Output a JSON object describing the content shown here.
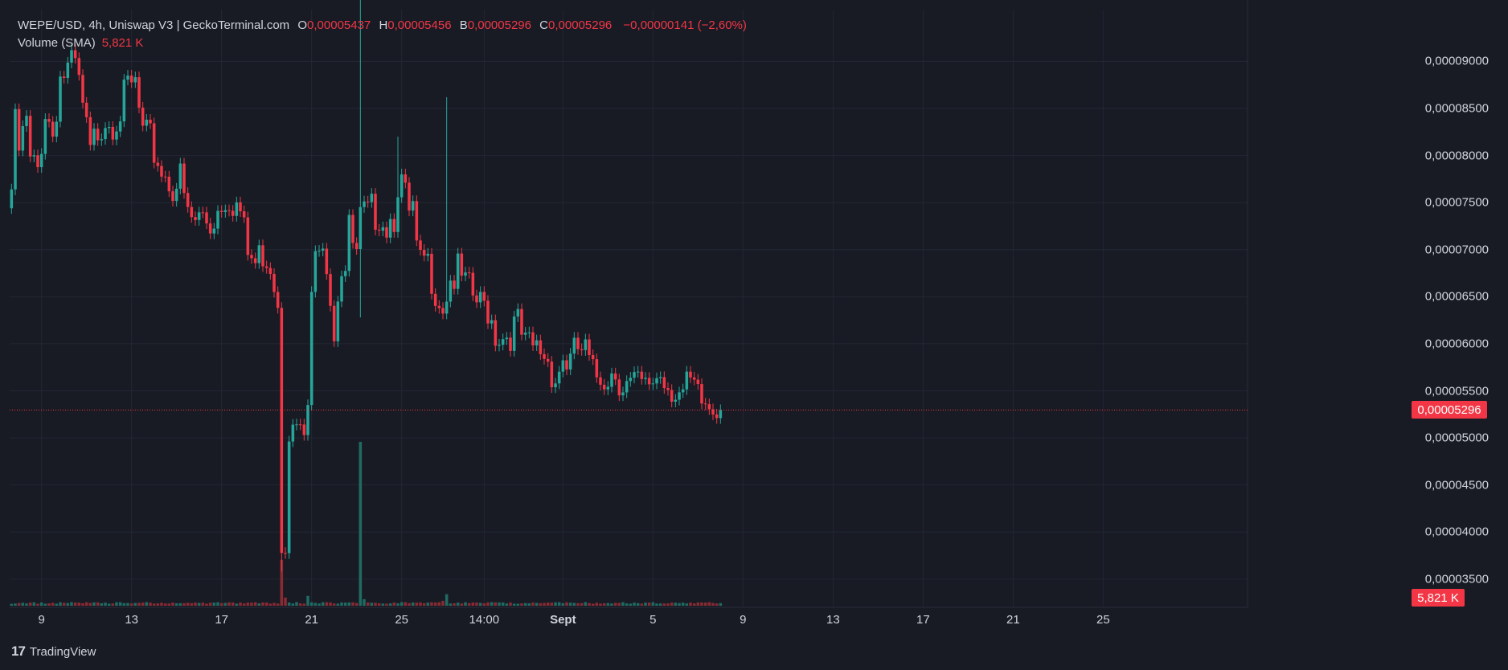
{
  "legend": {
    "symbol": "WEPE/USD, 4h, Uniswap V3 | GeckoTerminal.com",
    "o_label": "O",
    "o_value": "0,00005437",
    "h_label": "H",
    "h_value": "0,00005456",
    "l_label": "B",
    "l_value": "0,00005296",
    "c_label": "C",
    "c_value": "0,00005296",
    "change": "−0,00000141 (−2,60%)",
    "volume_label": "Volume (SMA)",
    "volume_value": "5,821 K"
  },
  "brand": {
    "logo_icon": "tradingview-logo-icon",
    "name": "TradingView"
  },
  "colors": {
    "up": "#26a69a",
    "down": "#f23645",
    "background": "#181b24",
    "grid": "#232733",
    "text": "#d1d4dc"
  },
  "chart_data": {
    "type": "candlestick",
    "y_ticks": [
      "0,00009000",
      "0,00008500",
      "0,00008000",
      "0,00007500",
      "0,00007000",
      "0,00006500",
      "0,00006000",
      "0,00005500",
      "0,00005000",
      "0,00004500",
      "0,00004000",
      "0,00003500"
    ],
    "y_tick_values": [
      9e-05,
      8.5e-05,
      8e-05,
      7.5e-05,
      7e-05,
      6.5e-05,
      6e-05,
      5.5e-05,
      5e-05,
      4.5e-05,
      4e-05,
      3.5e-05
    ],
    "ylim": [
      3.2e-05,
      9.55e-05
    ],
    "x_ticks": [
      {
        "label": "9",
        "bar": 8
      },
      {
        "label": "13",
        "bar": 32
      },
      {
        "label": "17",
        "bar": 56
      },
      {
        "label": "21",
        "bar": 80
      },
      {
        "label": "25",
        "bar": 104
      },
      {
        "label": "14:00",
        "bar": 126
      },
      {
        "label": "Sept",
        "bar": 147,
        "bold": true
      },
      {
        "label": "5",
        "bar": 171
      },
      {
        "label": "9",
        "bar": 195
      },
      {
        "label": "13",
        "bar": 219
      },
      {
        "label": "17",
        "bar": 243
      },
      {
        "label": "21",
        "bar": 267
      },
      {
        "label": "25",
        "bar": 291
      }
    ],
    "total_bar_slots": 330,
    "last_price": 5.296e-05,
    "last_price_label": "0,00005296",
    "volume_last_label": "5,821 K",
    "anchors": [
      [
        0,
        7.75e-05
      ],
      [
        1,
        8.4e-05
      ],
      [
        2,
        8.15e-05
      ],
      [
        4,
        8.45e-05
      ],
      [
        5,
        8e-05
      ],
      [
        7,
        7.95e-05
      ],
      [
        9,
        8.6e-05
      ],
      [
        11,
        8.35e-05
      ],
      [
        13,
        8.95e-05
      ],
      [
        15,
        9e-05
      ],
      [
        17,
        9.05e-05
      ],
      [
        19,
        8.6e-05
      ],
      [
        21,
        8.1e-05
      ],
      [
        23,
        8.4e-05
      ],
      [
        25,
        8.55e-05
      ],
      [
        27,
        8.5e-05
      ],
      [
        29,
        8.6e-05
      ],
      [
        31,
        8.8e-05
      ],
      [
        33,
        8.85e-05
      ],
      [
        35,
        8.3e-05
      ],
      [
        37,
        8.25e-05
      ],
      [
        39,
        8.05e-05
      ],
      [
        41,
        7.9e-05
      ],
      [
        43,
        7.8e-05
      ],
      [
        45,
        7.85e-05
      ],
      [
        47,
        7.45e-05
      ],
      [
        49,
        7.4e-05
      ],
      [
        51,
        7.48e-05
      ],
      [
        53,
        7.38e-05
      ],
      [
        55,
        7.55e-05
      ],
      [
        57,
        7.7e-05
      ],
      [
        59,
        7.65e-05
      ],
      [
        61,
        7.5e-05
      ],
      [
        63,
        7.05e-05
      ],
      [
        65,
        6.95e-05
      ],
      [
        67,
        7.1e-05
      ],
      [
        69,
        7e-05
      ],
      [
        71,
        6.6e-05
      ],
      [
        72,
        4.07e-05
      ],
      [
        73,
        4.1e-05
      ],
      [
        74,
        5.25e-05
      ],
      [
        75,
        5.12e-05
      ],
      [
        76,
        5.22e-05
      ],
      [
        77,
        5.1e-05
      ],
      [
        78,
        5.1e-05
      ],
      [
        79,
        5.45e-05
      ],
      [
        80,
        6.5e-05
      ],
      [
        81,
        7e-05
      ],
      [
        82,
        7.3e-05
      ],
      [
        83,
        7.28e-05
      ],
      [
        84,
        7.05e-05
      ],
      [
        85,
        6.65e-05
      ],
      [
        86,
        6.25e-05
      ],
      [
        87,
        6.7e-05
      ],
      [
        88,
        6.95e-05
      ],
      [
        89,
        6.9e-05
      ],
      [
        90,
        7.3e-05
      ],
      [
        91,
        7.15e-05
      ],
      [
        92,
        7e-05
      ],
      [
        93,
        7.4e-05
      ],
      [
        94,
        7.45e-05
      ],
      [
        95,
        7.45e-05
      ],
      [
        96,
        7.5e-05
      ],
      [
        98,
        7.52e-05
      ],
      [
        100,
        7.4e-05
      ],
      [
        102,
        7.5e-05
      ],
      [
        103,
        7.85e-05
      ],
      [
        104,
        7.8e-05
      ],
      [
        106,
        7.45e-05
      ],
      [
        107,
        7.5e-05
      ],
      [
        108,
        7.05e-05
      ],
      [
        109,
        6.9e-05
      ],
      [
        110,
        7e-05
      ],
      [
        112,
        6.85e-05
      ],
      [
        114,
        6.6e-05
      ],
      [
        115,
        6.55e-05
      ],
      [
        117,
        6.8e-05
      ],
      [
        119,
        6.85e-05
      ],
      [
        121,
        6.7e-05
      ],
      [
        123,
        6.6e-05
      ],
      [
        125,
        6.5e-05
      ],
      [
        127,
        6.5e-05
      ],
      [
        129,
        6.25e-05
      ],
      [
        131,
        6.2e-05
      ],
      [
        133,
        6.25e-05
      ],
      [
        135,
        6.3e-05
      ],
      [
        137,
        6.05e-05
      ],
      [
        139,
        6.05e-05
      ],
      [
        141,
        6.05e-05
      ],
      [
        143,
        5.95e-05
      ],
      [
        145,
        5.75e-05
      ],
      [
        147,
        5.95e-05
      ],
      [
        149,
        5.9e-05
      ],
      [
        151,
        6.05e-05
      ],
      [
        153,
        6e-05
      ],
      [
        155,
        5.75e-05
      ],
      [
        157,
        5.78e-05
      ],
      [
        159,
        5.8e-05
      ],
      [
        161,
        5.83e-05
      ],
      [
        163,
        5.7e-05
      ],
      [
        165,
        5.65e-05
      ],
      [
        167,
        5.65e-05
      ],
      [
        169,
        5.6e-05
      ],
      [
        171,
        5.75e-05
      ],
      [
        173,
        5.8e-05
      ],
      [
        175,
        5.7e-05
      ],
      [
        177,
        5.65e-05
      ],
      [
        179,
        5.55e-05
      ],
      [
        181,
        5.65e-05
      ],
      [
        183,
        5.5e-05
      ],
      [
        185,
        5.45e-05
      ],
      [
        187,
        5.42e-05
      ],
      [
        188,
        5.44e-05
      ],
      [
        189,
        5.3e-05
      ]
    ],
    "spikes": [
      {
        "bar": 72,
        "low": 3.58e-05
      },
      {
        "bar": 93,
        "high": 9.85e-05,
        "low": 6.28e-05
      },
      {
        "bar": 103,
        "high": 8.2e-05
      },
      {
        "bar": 116,
        "high": 8.62e-05
      }
    ],
    "volume_ylim": [
      0,
      1.0
    ],
    "volume_spikes": [
      {
        "bar": 72,
        "value": 0.28
      },
      {
        "bar": 73,
        "value": 0.05
      },
      {
        "bar": 79,
        "value": 0.06
      },
      {
        "bar": 93,
        "value": 1.0
      },
      {
        "bar": 94,
        "value": 0.04
      },
      {
        "bar": 116,
        "value": 0.07
      },
      {
        "bar": 115,
        "value": 0.03
      }
    ]
  }
}
